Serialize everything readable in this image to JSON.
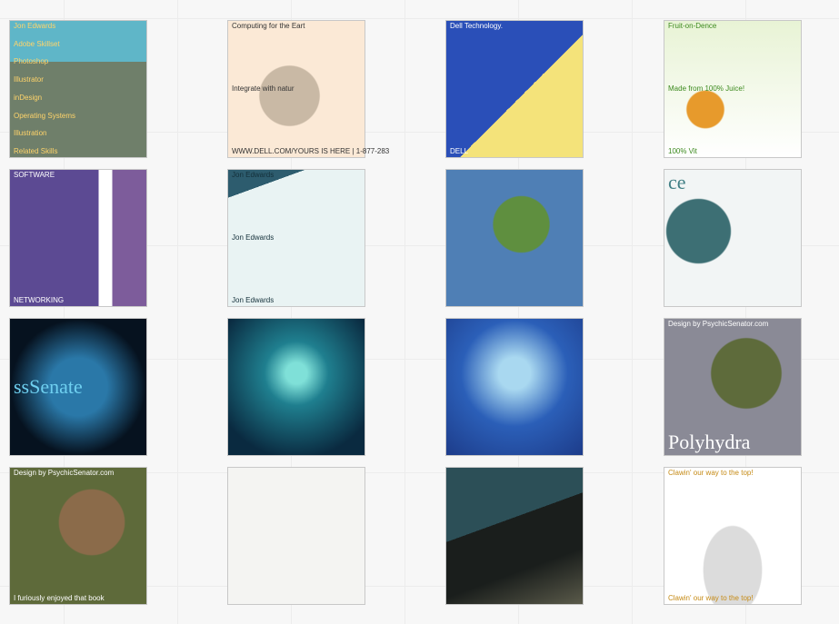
{
  "gallery": {
    "tiles": [
      {
        "texts": [
          "Jon Edwards",
          "Adobe Skillset",
          "Photoshop",
          "Illustrator",
          "inDesign",
          "Operating Systems",
          "Illustration",
          "Related Skills"
        ]
      },
      {
        "texts": [
          "Computing for the Eart",
          "Integrate with natur",
          "WWW.DELL.COM/YOURS IS HERE | 1-877-283"
        ]
      },
      {
        "texts": [
          "Dell Technology.",
          "DELL"
        ]
      },
      {
        "texts": [
          "Fruit-on-Dence",
          "Made from 100% Juice!",
          "100% Vit"
        ]
      },
      {
        "texts": [
          "SOFTWARE",
          "NETWORKING"
        ]
      },
      {
        "texts": [
          "Jon Edwards",
          "Jon Edwards",
          "Jon Edwards"
        ]
      },
      {
        "texts": []
      },
      {
        "texts": [
          "ce"
        ]
      },
      {
        "texts": [
          "ssSenate"
        ]
      },
      {
        "texts": []
      },
      {
        "texts": []
      },
      {
        "texts": [
          "Design by PsychicSenator.com",
          "Polyhydra"
        ]
      },
      {
        "texts": [
          "Design by PsychicSenator.com",
          "I furiously enjoyed that book"
        ]
      },
      {
        "texts": []
      },
      {
        "texts": []
      },
      {
        "texts": [
          "Clawin' our way to the top!",
          "Clawin' our way to the top!"
        ]
      }
    ]
  }
}
